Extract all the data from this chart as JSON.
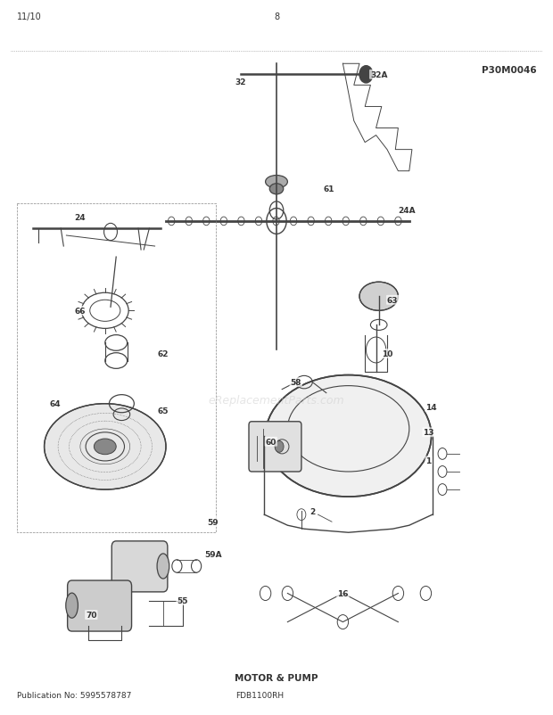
{
  "title": "MOTOR & PUMP",
  "pub_no": "Publication No: 5995578787",
  "model": "FDB1100RH",
  "date": "11/10",
  "page": "8",
  "part_no": "P30M0046",
  "bg_color": "#ffffff",
  "header_line_color": "#555555",
  "text_color": "#333333",
  "diagram_color": "#444444"
}
